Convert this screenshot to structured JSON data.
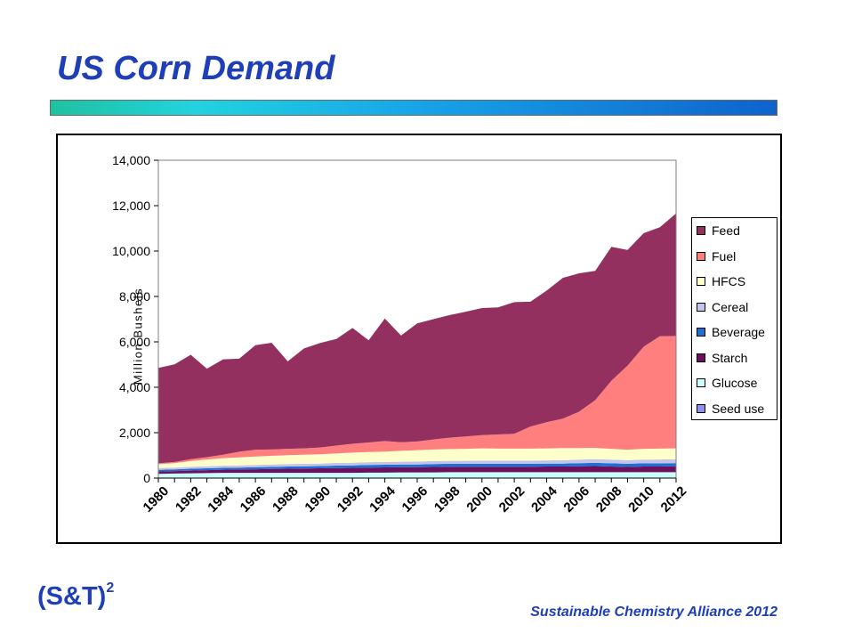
{
  "slide": {
    "title": "US Corn Demand",
    "logo_text": "(S&T)",
    "logo_superscript": "2",
    "footer": "Sustainable Chemistry Alliance 2012"
  },
  "colors": {
    "title_text": "#1f3fb8",
    "gradient_bar": [
      "#1fc1a0",
      "#22d3df",
      "#17a5e8",
      "#0f62cc"
    ]
  },
  "chart_data": {
    "type": "area",
    "stacked": true,
    "title": "",
    "xlabel": "",
    "ylabel": "Million Bushels",
    "ylim": [
      0,
      14000
    ],
    "yticks": [
      0,
      2000,
      4000,
      6000,
      8000,
      10000,
      12000,
      14000
    ],
    "ytick_labels": [
      "0",
      "2,000",
      "4,000",
      "6,000",
      "8,000",
      "10,000",
      "12,000",
      "14,000"
    ],
    "x": [
      1980,
      1981,
      1982,
      1983,
      1984,
      1985,
      1986,
      1987,
      1988,
      1989,
      1990,
      1991,
      1992,
      1993,
      1994,
      1995,
      1996,
      1997,
      1998,
      1999,
      2000,
      2001,
      2002,
      2003,
      2004,
      2005,
      2006,
      2007,
      2008,
      2009,
      2010,
      2011,
      2012
    ],
    "x_tick_labels": [
      "1980",
      "1982",
      "1984",
      "1986",
      "1988",
      "1990",
      "1992",
      "1994",
      "1996",
      "1998",
      "2000",
      "2002",
      "2004",
      "2006",
      "2008",
      "2010",
      "2012"
    ],
    "grid": false,
    "legend_position": "right",
    "series": [
      {
        "name": "Seed use",
        "color": "#8f8ff0",
        "values": [
          20,
          20,
          20,
          20,
          20,
          20,
          20,
          20,
          20,
          20,
          20,
          20,
          20,
          20,
          20,
          20,
          20,
          20,
          20,
          20,
          20,
          20,
          20,
          20,
          20,
          20,
          20,
          20,
          20,
          20,
          20,
          20,
          20
        ]
      },
      {
        "name": "Glucose",
        "color": "#c9ffff",
        "values": [
          170,
          180,
          190,
          200,
          210,
          210,
          210,
          210,
          210,
          210,
          210,
          210,
          210,
          220,
          220,
          230,
          230,
          230,
          240,
          240,
          240,
          240,
          240,
          240,
          240,
          240,
          240,
          240,
          240,
          240,
          240,
          240,
          240
        ]
      },
      {
        "name": "Starch",
        "color": "#6b0f5e",
        "values": [
          100,
          110,
          120,
          130,
          140,
          150,
          160,
          170,
          180,
          190,
          200,
          210,
          220,
          220,
          230,
          230,
          230,
          240,
          240,
          240,
          240,
          240,
          240,
          240,
          250,
          250,
          260,
          270,
          250,
          230,
          250,
          250,
          260
        ]
      },
      {
        "name": "Beverage",
        "color": "#1f6fd0",
        "values": [
          70,
          70,
          80,
          80,
          80,
          80,
          90,
          90,
          100,
          100,
          100,
          110,
          110,
          120,
          120,
          120,
          120,
          130,
          130,
          130,
          130,
          130,
          130,
          130,
          130,
          130,
          140,
          140,
          140,
          140,
          140,
          140,
          140
        ]
      },
      {
        "name": "Cereal",
        "color": "#c4c4ea",
        "values": [
          80,
          80,
          90,
          90,
          100,
          100,
          100,
          110,
          110,
          110,
          110,
          120,
          120,
          120,
          120,
          120,
          130,
          130,
          130,
          130,
          140,
          140,
          140,
          140,
          140,
          150,
          150,
          160,
          160,
          160,
          160,
          170,
          170
        ]
      },
      {
        "name": "HFCS",
        "color": "#ffffcc",
        "values": [
          170,
          200,
          250,
          300,
          330,
          350,
          370,
          380,
          390,
          400,
          410,
          420,
          440,
          450,
          460,
          480,
          500,
          510,
          520,
          530,
          540,
          530,
          530,
          530,
          530,
          530,
          510,
          500,
          480,
          460,
          480,
          480,
          480
        ]
      },
      {
        "name": "Fuel",
        "color": "#ff7f7f",
        "values": [
          40,
          50,
          80,
          100,
          150,
          250,
          300,
          280,
          280,
          280,
          300,
          340,
          390,
          420,
          460,
          380,
          380,
          440,
          500,
          540,
          580,
          620,
          650,
          970,
          1150,
          1300,
          1600,
          2100,
          3000,
          3700,
          4500,
          4950,
          4950
        ]
      },
      {
        "name": "Feed",
        "color": "#93305f",
        "values": [
          4200,
          4300,
          4600,
          3900,
          4200,
          4100,
          4600,
          4700,
          3850,
          4400,
          4600,
          4700,
          5100,
          4500,
          5400,
          4700,
          5200,
          5300,
          5400,
          5500,
          5600,
          5600,
          5800,
          5500,
          5800,
          6200,
          6100,
          5700,
          5900,
          5100,
          5000,
          4800,
          5400
        ]
      }
    ]
  }
}
